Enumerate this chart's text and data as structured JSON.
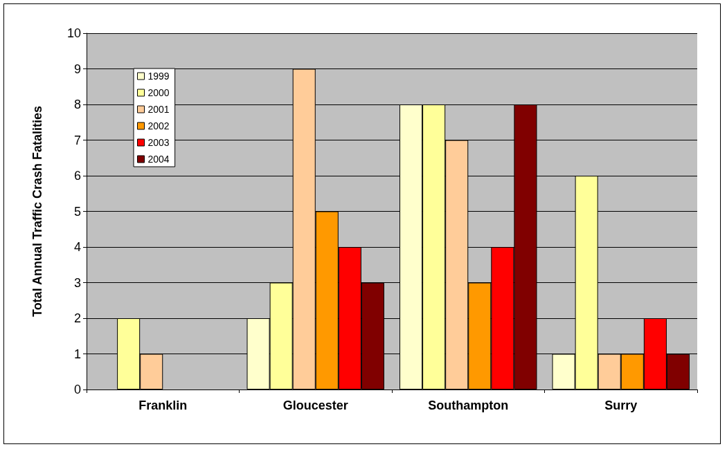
{
  "chart_data": {
    "type": "bar",
    "ylabel": "Total Annual Traffic Crash Fatalities",
    "categories": [
      "Franklin",
      "Gloucester",
      "Southampton",
      "Surry"
    ],
    "series": [
      {
        "name": "1999",
        "color": "#ffffcc",
        "values": [
          null,
          2,
          8,
          1
        ]
      },
      {
        "name": "2000",
        "color": "#ffff99",
        "values": [
          2,
          3,
          8,
          6
        ]
      },
      {
        "name": "2001",
        "color": "#ffcc99",
        "values": [
          1,
          9,
          7,
          1
        ]
      },
      {
        "name": "2002",
        "color": "#ff9900",
        "values": [
          null,
          5,
          3,
          1
        ]
      },
      {
        "name": "2003",
        "color": "#ff0000",
        "values": [
          null,
          4,
          4,
          2
        ]
      },
      {
        "name": "2004",
        "color": "#800000",
        "values": [
          null,
          3,
          8,
          1
        ]
      }
    ],
    "ylim": [
      0,
      10
    ],
    "yticks": [
      0,
      1,
      2,
      3,
      4,
      5,
      6,
      7,
      8,
      9,
      10
    ],
    "grid": "y",
    "legend": "top left"
  }
}
